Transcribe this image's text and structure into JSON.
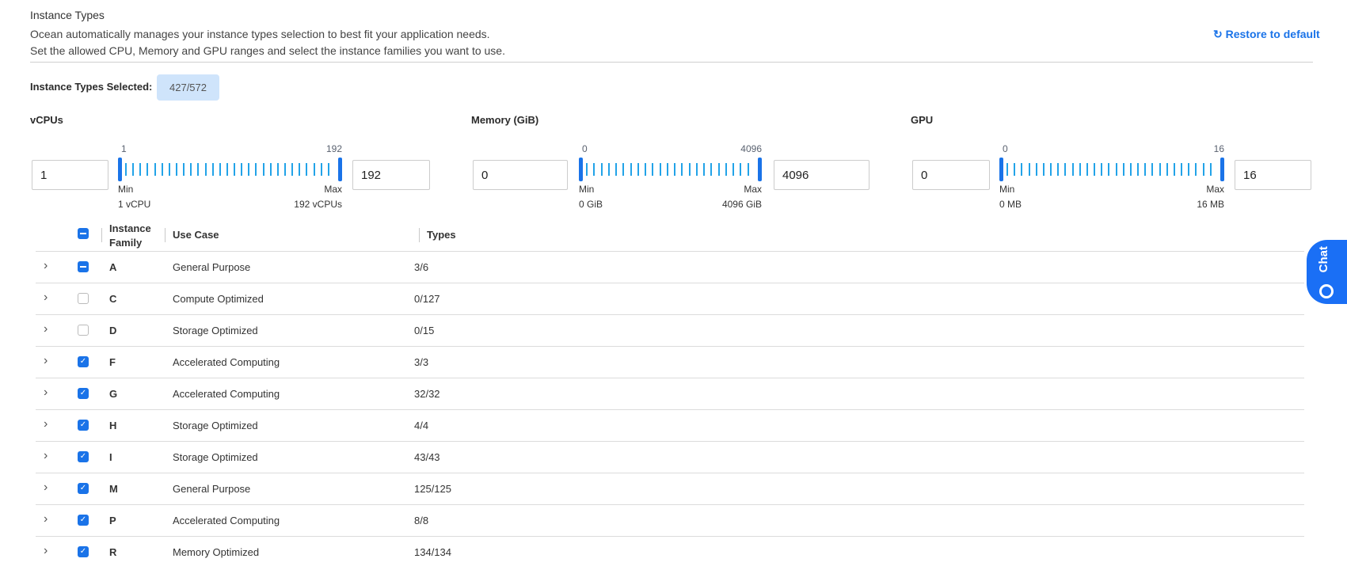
{
  "header": {
    "title": "Instance Types",
    "description_line1": "Ocean automatically manages your instance types selection to best fit your application needs.",
    "description_line2": "Set the allowed CPU, Memory and GPU ranges and select the instance families you want to use.",
    "restore_label": "Restore to default",
    "restore_icon": "refresh-icon"
  },
  "selected": {
    "label": "Instance Types Selected:",
    "value": "427/572"
  },
  "ranges": [
    {
      "label": "vCPUs",
      "min_value": "1",
      "max_value": "192",
      "scale_min": "1",
      "scale_max": "192",
      "min_caption": "Min",
      "max_caption": "Max",
      "min_unit": "1 vCPU",
      "max_unit": "192 vCPUs"
    },
    {
      "label": "Memory (GiB)",
      "min_value": "0",
      "max_value": "4096",
      "scale_min": "0",
      "scale_max": "4096",
      "min_caption": "Min",
      "max_caption": "Max",
      "min_unit": "0 GiB",
      "max_unit": "4096 GiB"
    },
    {
      "label": "GPU",
      "min_value": "0",
      "max_value": "16",
      "scale_min": "0",
      "scale_max": "16",
      "min_caption": "Min",
      "max_caption": "Max",
      "min_unit": "0 MB",
      "max_unit": "16 MB"
    }
  ],
  "table": {
    "header_checkbox": "partial",
    "columns": {
      "family_line1": "Instance",
      "family_line2": "Family",
      "use_case": "Use Case",
      "types": "Types"
    },
    "rows": [
      {
        "family": "A",
        "use_case": "General Purpose",
        "types": "3/6",
        "state": "partial"
      },
      {
        "family": "C",
        "use_case": "Compute Optimized",
        "types": "0/127",
        "state": "unchecked"
      },
      {
        "family": "D",
        "use_case": "Storage Optimized",
        "types": "0/15",
        "state": "unchecked"
      },
      {
        "family": "F",
        "use_case": "Accelerated Computing",
        "types": "3/3",
        "state": "checked"
      },
      {
        "family": "G",
        "use_case": "Accelerated Computing",
        "types": "32/32",
        "state": "checked"
      },
      {
        "family": "H",
        "use_case": "Storage Optimized",
        "types": "4/4",
        "state": "checked"
      },
      {
        "family": "I",
        "use_case": "Storage Optimized",
        "types": "43/43",
        "state": "checked"
      },
      {
        "family": "M",
        "use_case": "General Purpose",
        "types": "125/125",
        "state": "checked"
      },
      {
        "family": "P",
        "use_case": "Accelerated Computing",
        "types": "8/8",
        "state": "checked"
      },
      {
        "family": "R",
        "use_case": "Memory Optimized",
        "types": "134/134",
        "state": "checked"
      }
    ]
  },
  "chat": {
    "label": "Chat",
    "icon": "chat-bubble-icon"
  },
  "colors": {
    "accent": "#1a73e8",
    "tick": "#22a3e8",
    "badge_bg": "#cfe4fb",
    "chat_bg": "#1a6ff5"
  }
}
